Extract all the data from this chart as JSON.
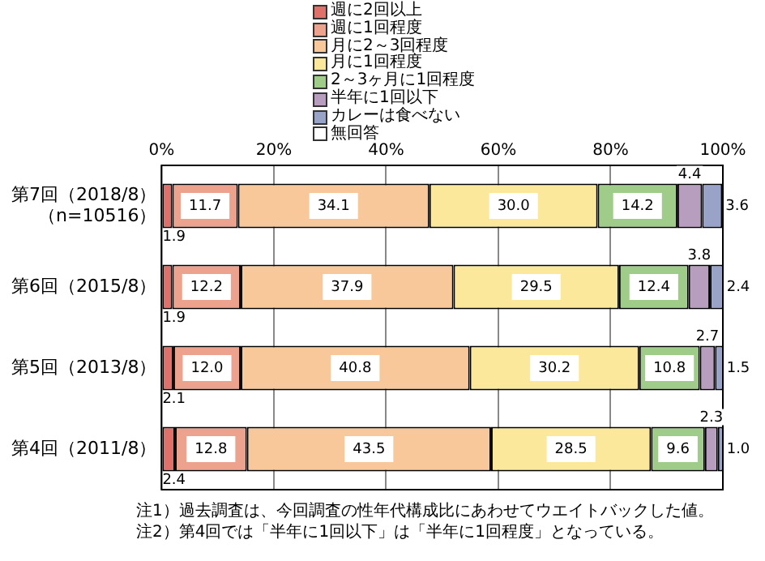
{
  "chart_data": {
    "type": "bar",
    "orientation": "horizontal",
    "stacked": true,
    "categories": [
      "第7回（2018/8）（n=10516）",
      "第6回（2015/8）",
      "第5回（2013/8）",
      "第4回（2011/8）"
    ],
    "series": [
      {
        "name": "週に2回以上",
        "color": "#e0706a",
        "values": [
          1.9,
          1.9,
          2.1,
          2.4
        ],
        "value_labels": [
          "1.9",
          "1.9",
          "2.1",
          "2.4"
        ]
      },
      {
        "name": "週に1回程度",
        "color": "#eca28c",
        "values": [
          11.7,
          12.2,
          12.0,
          12.8
        ],
        "value_labels": [
          "11.7",
          "12.2",
          "12.0",
          "12.8"
        ]
      },
      {
        "name": "月に2～3回程度",
        "color": "#f9c89a",
        "values": [
          34.1,
          37.9,
          40.8,
          43.5
        ],
        "value_labels": [
          "34.1",
          "37.9",
          "40.8",
          "43.5"
        ]
      },
      {
        "name": "月に1回程度",
        "color": "#fce89a",
        "values": [
          30.0,
          29.5,
          30.2,
          28.5
        ],
        "value_labels": [
          "30.0",
          "29.5",
          "30.2",
          "28.5"
        ]
      },
      {
        "name": "2～3ヶ月に1回程度",
        "color": "#a0cc8a",
        "values": [
          14.2,
          12.4,
          10.8,
          9.6
        ],
        "value_labels": [
          "14.2",
          "12.4",
          "10.8",
          "9.6"
        ]
      },
      {
        "name": "半年に1回以下",
        "color": "#b89ebe",
        "values": [
          4.4,
          3.8,
          2.7,
          2.3
        ],
        "value_labels": [
          "4.4",
          "3.8",
          "2.7",
          "2.3"
        ]
      },
      {
        "name": "カレーは食べない",
        "color": "#99a3c8",
        "values": [
          3.6,
          2.4,
          1.5,
          1.0
        ],
        "value_labels": [
          "3.6",
          "2.4",
          "1.5",
          "1.0"
        ]
      },
      {
        "name": "無回答",
        "color": "#ffffff",
        "values": [
          null,
          null,
          null,
          null
        ]
      }
    ],
    "xlim": [
      0,
      100
    ],
    "xticks": [
      {
        "value": 0,
        "label": "0%"
      },
      {
        "value": 20,
        "label": "20%"
      },
      {
        "value": 40,
        "label": "40%"
      },
      {
        "value": 60,
        "label": "60%"
      },
      {
        "value": 80,
        "label": "80%"
      },
      {
        "value": 100,
        "label": "100%"
      }
    ],
    "grid": "x",
    "legend": "top",
    "annotations": [
      "注1）過去調査は、今回調査の性年代構成比にあわせてウエイトバックした値。",
      "注2）第4回では「半年に1回以下」は「半年に1回程度」となっている。"
    ]
  }
}
